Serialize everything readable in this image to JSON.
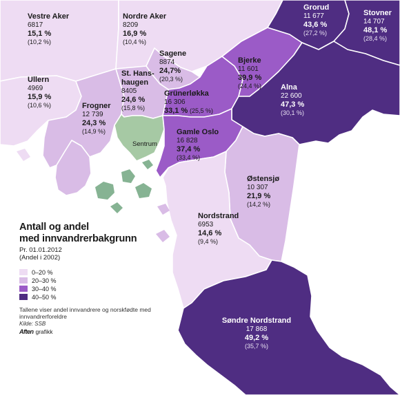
{
  "colors": {
    "c0_20": "#eedcf3",
    "c20_30": "#d9bce6",
    "c30_40": "#9b5bc7",
    "c40_50": "#4f2d82",
    "sentrum": "#a6c9a4",
    "islands": "#86b393"
  },
  "legend": {
    "title_line1": "Antall og andel",
    "title_line2": "med innvandrerbakgrunn",
    "subtitle_line1": "Pr. 01.01.2012",
    "subtitle_line2": "(Andel i 2002)",
    "items": [
      {
        "label": "0–20 %",
        "color_key": "c0_20"
      },
      {
        "label": "20–30 %",
        "color_key": "c20_30"
      },
      {
        "label": "30–40 %",
        "color_key": "c30_40"
      },
      {
        "label": "40–50 %",
        "color_key": "c40_50"
      }
    ],
    "note": "Tallene viser andel innvandrere og norskfødte med innvandrerforeldre",
    "source": "Kilde: SSB",
    "credit_mark": "Aften",
    "credit_text": "grafikk"
  },
  "districts": {
    "vestre_aker": {
      "name": "Vestre Aker",
      "count": "6817",
      "pct": "15,1 %",
      "share2002": "(10,2 %)",
      "band": "c0_20"
    },
    "nordre_aker": {
      "name": "Nordre Aker",
      "count": "8209",
      "pct": "16,9 %",
      "share2002": "(10,4 %)",
      "band": "c0_20"
    },
    "grorud": {
      "name": "Grorud",
      "count": "11 677",
      "pct": "43,6 %",
      "share2002": "(27,2 %)",
      "band": "c40_50"
    },
    "stovner": {
      "name": "Stovner",
      "count": "14 707",
      "pct": "48,1 %",
      "share2002": "(28,4 %)",
      "band": "c40_50"
    },
    "sagene": {
      "name": "Sagene",
      "count": "8874",
      "pct": "24,7%",
      "share2002": "(20,3 %)",
      "band": "c20_30"
    },
    "bjerke": {
      "name": "Bjerke",
      "count": "11 601",
      "pct": "39,9 %",
      "share2002": "(24,4 %)",
      "band": "c30_40"
    },
    "ullern": {
      "name": "Ullern",
      "count": "4969",
      "pct": "15,9 %",
      "share2002": "(10,6 %)",
      "band": "c0_20"
    },
    "st_hanshaugen": {
      "name_line1": "St. Hans-",
      "name_line2": "haugen",
      "count": "8405",
      "pct": "24,6 %",
      "share2002": "(15,8 %)",
      "band": "c20_30"
    },
    "alna": {
      "name": "Alna",
      "count": "22 600",
      "pct": "47,3 %",
      "share2002": "(30,1 %)",
      "band": "c40_50"
    },
    "frogner": {
      "name": "Frogner",
      "count": "12 739",
      "pct": "24,3 %",
      "share2002": "(14,9 %)",
      "band": "c20_30"
    },
    "grunerlokka": {
      "name": "Grünerløkka",
      "count": "16 306",
      "pct": "33,1 %",
      "share2002": "(25,5 %)",
      "band": "c30_40"
    },
    "sentrum": {
      "name": "Sentrum"
    },
    "gamle_oslo": {
      "name": "Gamle Oslo",
      "count": "16 828",
      "pct": "37,4 %",
      "share2002": "(33,4 %)",
      "band": "c30_40"
    },
    "ostensjo": {
      "name": "Østensjø",
      "count": "10 307",
      "pct": "21,9 %",
      "share2002": "(14,2 %)",
      "band": "c20_30"
    },
    "nordstrand": {
      "name": "Nordstrand",
      "count": "6953",
      "pct": "14,6 %",
      "share2002": "(9,4 %)",
      "band": "c0_20"
    },
    "sondre_nordstrand": {
      "name": "Søndre Nordstrand",
      "count": "17 868",
      "pct": "49,2 %",
      "share2002": "(35,7 %)",
      "band": "c40_50"
    }
  }
}
